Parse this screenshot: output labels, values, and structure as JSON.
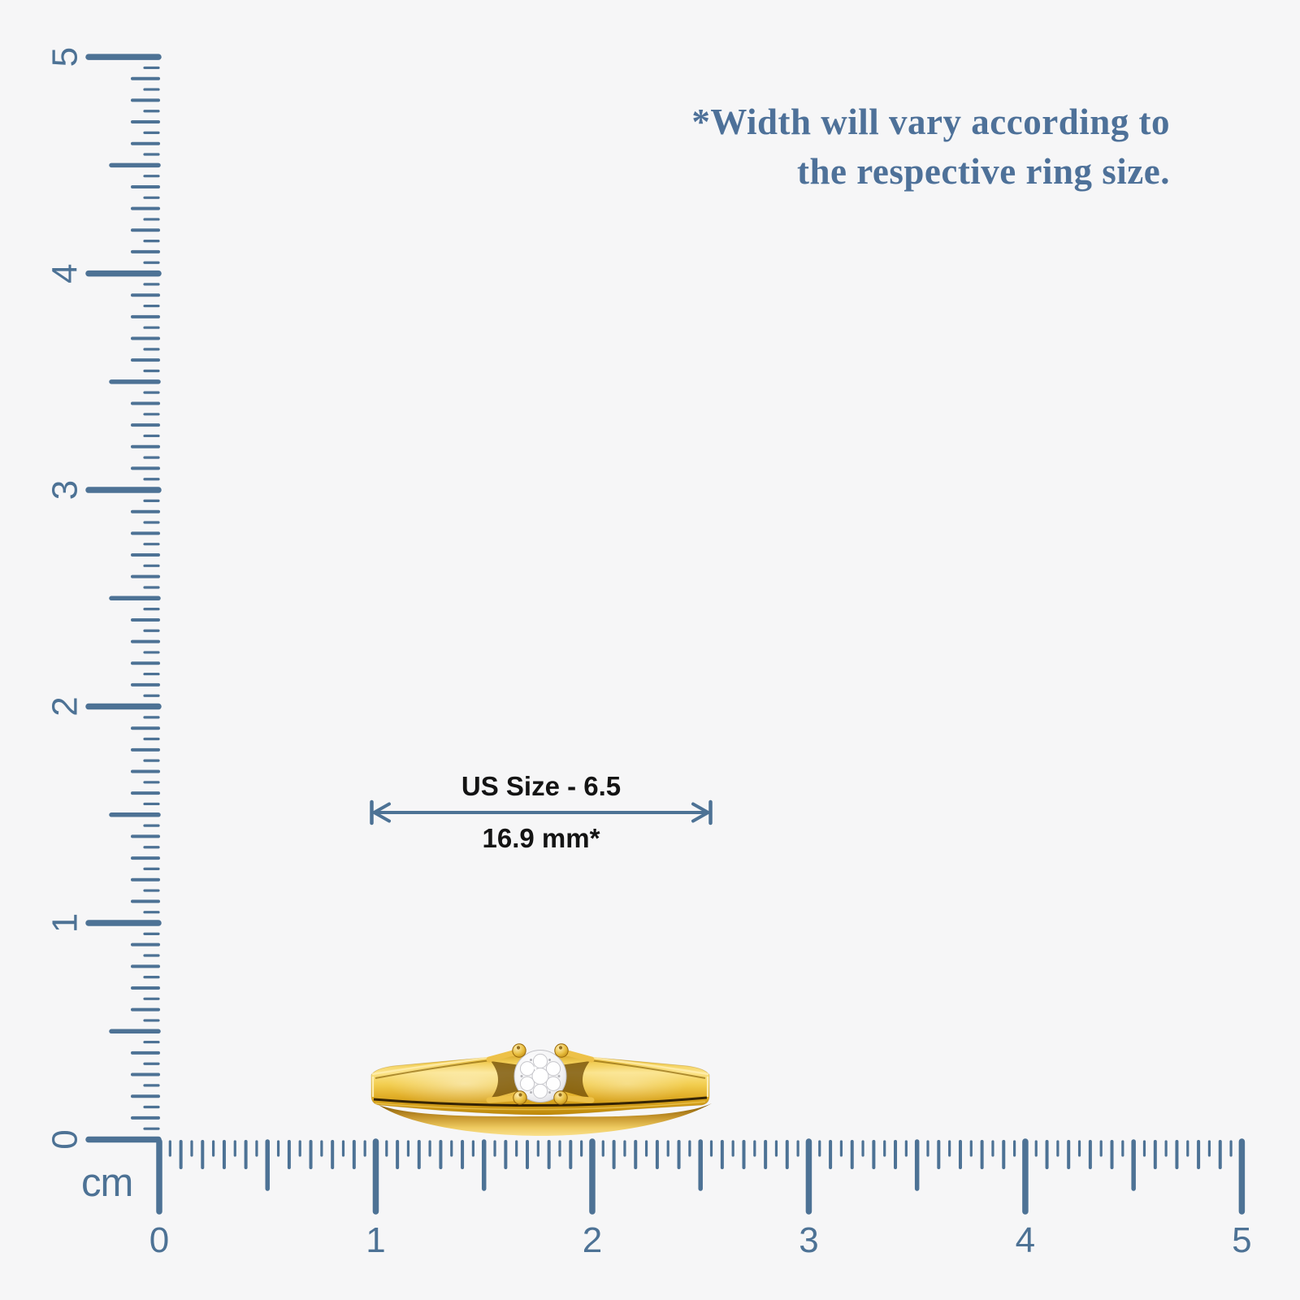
{
  "note": {
    "line1": "*Width will vary according to",
    "line2": "the respective ring size."
  },
  "dimension": {
    "size_label": "US Size - 6.5",
    "width_label": "16.9 mm*"
  },
  "ruler": {
    "unit": "cm",
    "vertical_labels": [
      "0",
      "1",
      "2",
      "3",
      "4",
      "5"
    ],
    "horizontal_labels": [
      "0",
      "1",
      "2",
      "3",
      "4",
      "5"
    ]
  },
  "colors": {
    "background": "#f6f6f7",
    "ruler": "#4d7295",
    "arrow": "#4d7295",
    "note_text": "#4e7199",
    "dimension_text": "#141414",
    "gold": "#e8b92e",
    "diamond": "#ffffff"
  }
}
